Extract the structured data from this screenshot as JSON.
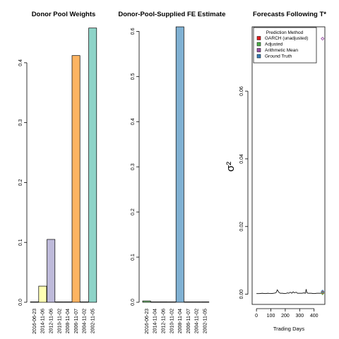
{
  "chart_data": [
    {
      "type": "bar",
      "title": "Donor Pool Weights",
      "categories": [
        "2016-06-23",
        "2014-11-06",
        "2012-11-06",
        "2010-11-02",
        "2008-11-04",
        "2006-11-07",
        "2004-11-02",
        "2002-11-05"
      ],
      "values": [
        0.0,
        0.027,
        0.105,
        0.0,
        0.0,
        0.412,
        0.0,
        0.458
      ],
      "colors": [
        "#ffffff",
        "#ffffb3",
        "#bebada",
        "#ffffff",
        "#ffffff",
        "#fdb462",
        "#ffffff",
        "#8dd3c7"
      ],
      "ylim": [
        0,
        0.46
      ],
      "yticks": [
        "0.0",
        "0.1",
        "0.2",
        "0.3",
        "0.4"
      ],
      "ytick_values": [
        0,
        0.1,
        0.2,
        0.3,
        0.4
      ],
      "xlabel": "",
      "ylabel": ""
    },
    {
      "type": "bar",
      "title": "Donor-Pool-Supplied FE Estimates",
      "categories": [
        "2016-06-23",
        "2014-11-04",
        "2012-11-06",
        "2010-11-02",
        "2008-11-04",
        "2006-11-07",
        "2004-11-02",
        "2002-11-05"
      ],
      "values": [
        0.003,
        0.0,
        0.001,
        0.0,
        0.61,
        0.0,
        0.0,
        0.0
      ],
      "colors": [
        "#7fc97f",
        "#ffffff",
        "#ffffff",
        "#ffffff",
        "#80b1d3",
        "#ffffff",
        "#ffffff",
        "#ffffff"
      ],
      "ylim": [
        0,
        0.61
      ],
      "yticks": [
        "0.0",
        "0.1",
        "0.2",
        "0.3",
        "0.4",
        "0.5",
        "0.6"
      ],
      "ytick_values": [
        0,
        0.1,
        0.2,
        0.3,
        0.4,
        0.5,
        0.6
      ],
      "xlabel": "",
      "ylabel": ""
    },
    {
      "type": "line",
      "title": "Forecasts Following T*",
      "xlabel": "Trading Days",
      "ylabel": "σ²",
      "xlim": [
        -30,
        475
      ],
      "ylim": [
        -0.003,
        0.079
      ],
      "xticks": [
        "0",
        "100",
        "200",
        "300",
        "400"
      ],
      "xtick_values": [
        0,
        100,
        200,
        300,
        400
      ],
      "yticks": [
        "0.00",
        "0.02",
        "0.04",
        "0.06"
      ],
      "ytick_values": [
        0,
        0.02,
        0.04,
        0.06
      ],
      "series": [
        {
          "kind": "line",
          "color": "#000000",
          "x": [
            0,
            20,
            40,
            60,
            80,
            100,
            120,
            135,
            145,
            155,
            165,
            180,
            200,
            215,
            225,
            235,
            245,
            255,
            265,
            275,
            285,
            300,
            315,
            330,
            340,
            345,
            350,
            360,
            380,
            400,
            420,
            440,
            455
          ],
          "y": [
            0.0002,
            0.0002,
            0.0003,
            0.0002,
            0.0003,
            0.0002,
            0.0003,
            0.0004,
            0.0013,
            0.0006,
            0.0003,
            0.0003,
            0.0002,
            0.0004,
            0.0003,
            0.0006,
            0.0003,
            0.0007,
            0.0004,
            0.0006,
            0.0003,
            0.0003,
            0.0003,
            0.0004,
            0.0003,
            0.0015,
            0.0004,
            0.0003,
            0.0003,
            0.0002,
            0.0003,
            0.0003,
            0.0003
          ]
        },
        {
          "name": "GARCH (unadjusted)",
          "kind": "point",
          "color": "#e41a1c",
          "x": [
            459
          ],
          "y": [
            0.0005
          ]
        },
        {
          "name": "Adjusted",
          "kind": "point",
          "color": "#4daf4a",
          "x": [
            459
          ],
          "y": [
            0.0003
          ]
        },
        {
          "name": "Arithmetic Mean",
          "kind": "point",
          "color": "#984ea3",
          "x": [
            459
          ],
          "y": [
            0.0755
          ]
        },
        {
          "name": "Ground Truth",
          "kind": "point",
          "color": "#377eb8",
          "x": [
            459
          ],
          "y": [
            0.0008
          ]
        }
      ],
      "legend": {
        "title": "Prediction Method",
        "placement": "top-right",
        "entries": [
          {
            "label": "GARCH (unadjusted)",
            "color": "#e41a1c"
          },
          {
            "label": "Adjusted",
            "color": "#4daf4a"
          },
          {
            "label": "Arithmetic Mean",
            "color": "#984ea3"
          },
          {
            "label": "Ground Truth",
            "color": "#377eb8"
          }
        ]
      }
    }
  ]
}
